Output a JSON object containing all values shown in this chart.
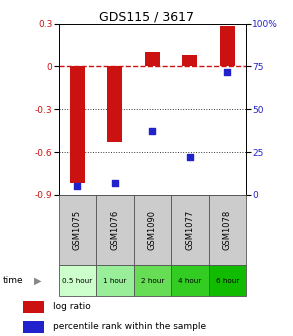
{
  "title": "GDS115 / 3617",
  "samples": [
    "GSM1075",
    "GSM1076",
    "GSM1090",
    "GSM1077",
    "GSM1078"
  ],
  "time_labels": [
    "0.5 hour",
    "1 hour",
    "2 hour",
    "4 hour",
    "6 hour"
  ],
  "log_ratio": [
    -0.82,
    -0.53,
    0.1,
    0.08,
    0.28
  ],
  "percentile": [
    5,
    7,
    37,
    22,
    72
  ],
  "ylim_left": [
    -0.9,
    0.3
  ],
  "ylim_right": [
    0,
    100
  ],
  "yticks_left": [
    -0.9,
    -0.6,
    -0.3,
    0.0,
    0.3
  ],
  "yticks_right": [
    0,
    25,
    50,
    75,
    100
  ],
  "bar_color": "#cc1111",
  "scatter_color": "#2222cc",
  "zero_line_color": "#cc1111",
  "dotted_line_color": "#333333",
  "bg_color": "#ffffff",
  "plot_bg": "#ffffff",
  "title_fontsize": 9,
  "label_fontsize": 6.5,
  "legend_fontsize": 6.5,
  "sample_bg": "#cccccc",
  "time_colors": [
    "#ddfedd",
    "#aaeebb",
    "#77dd77",
    "#44cc44",
    "#11bb11"
  ]
}
